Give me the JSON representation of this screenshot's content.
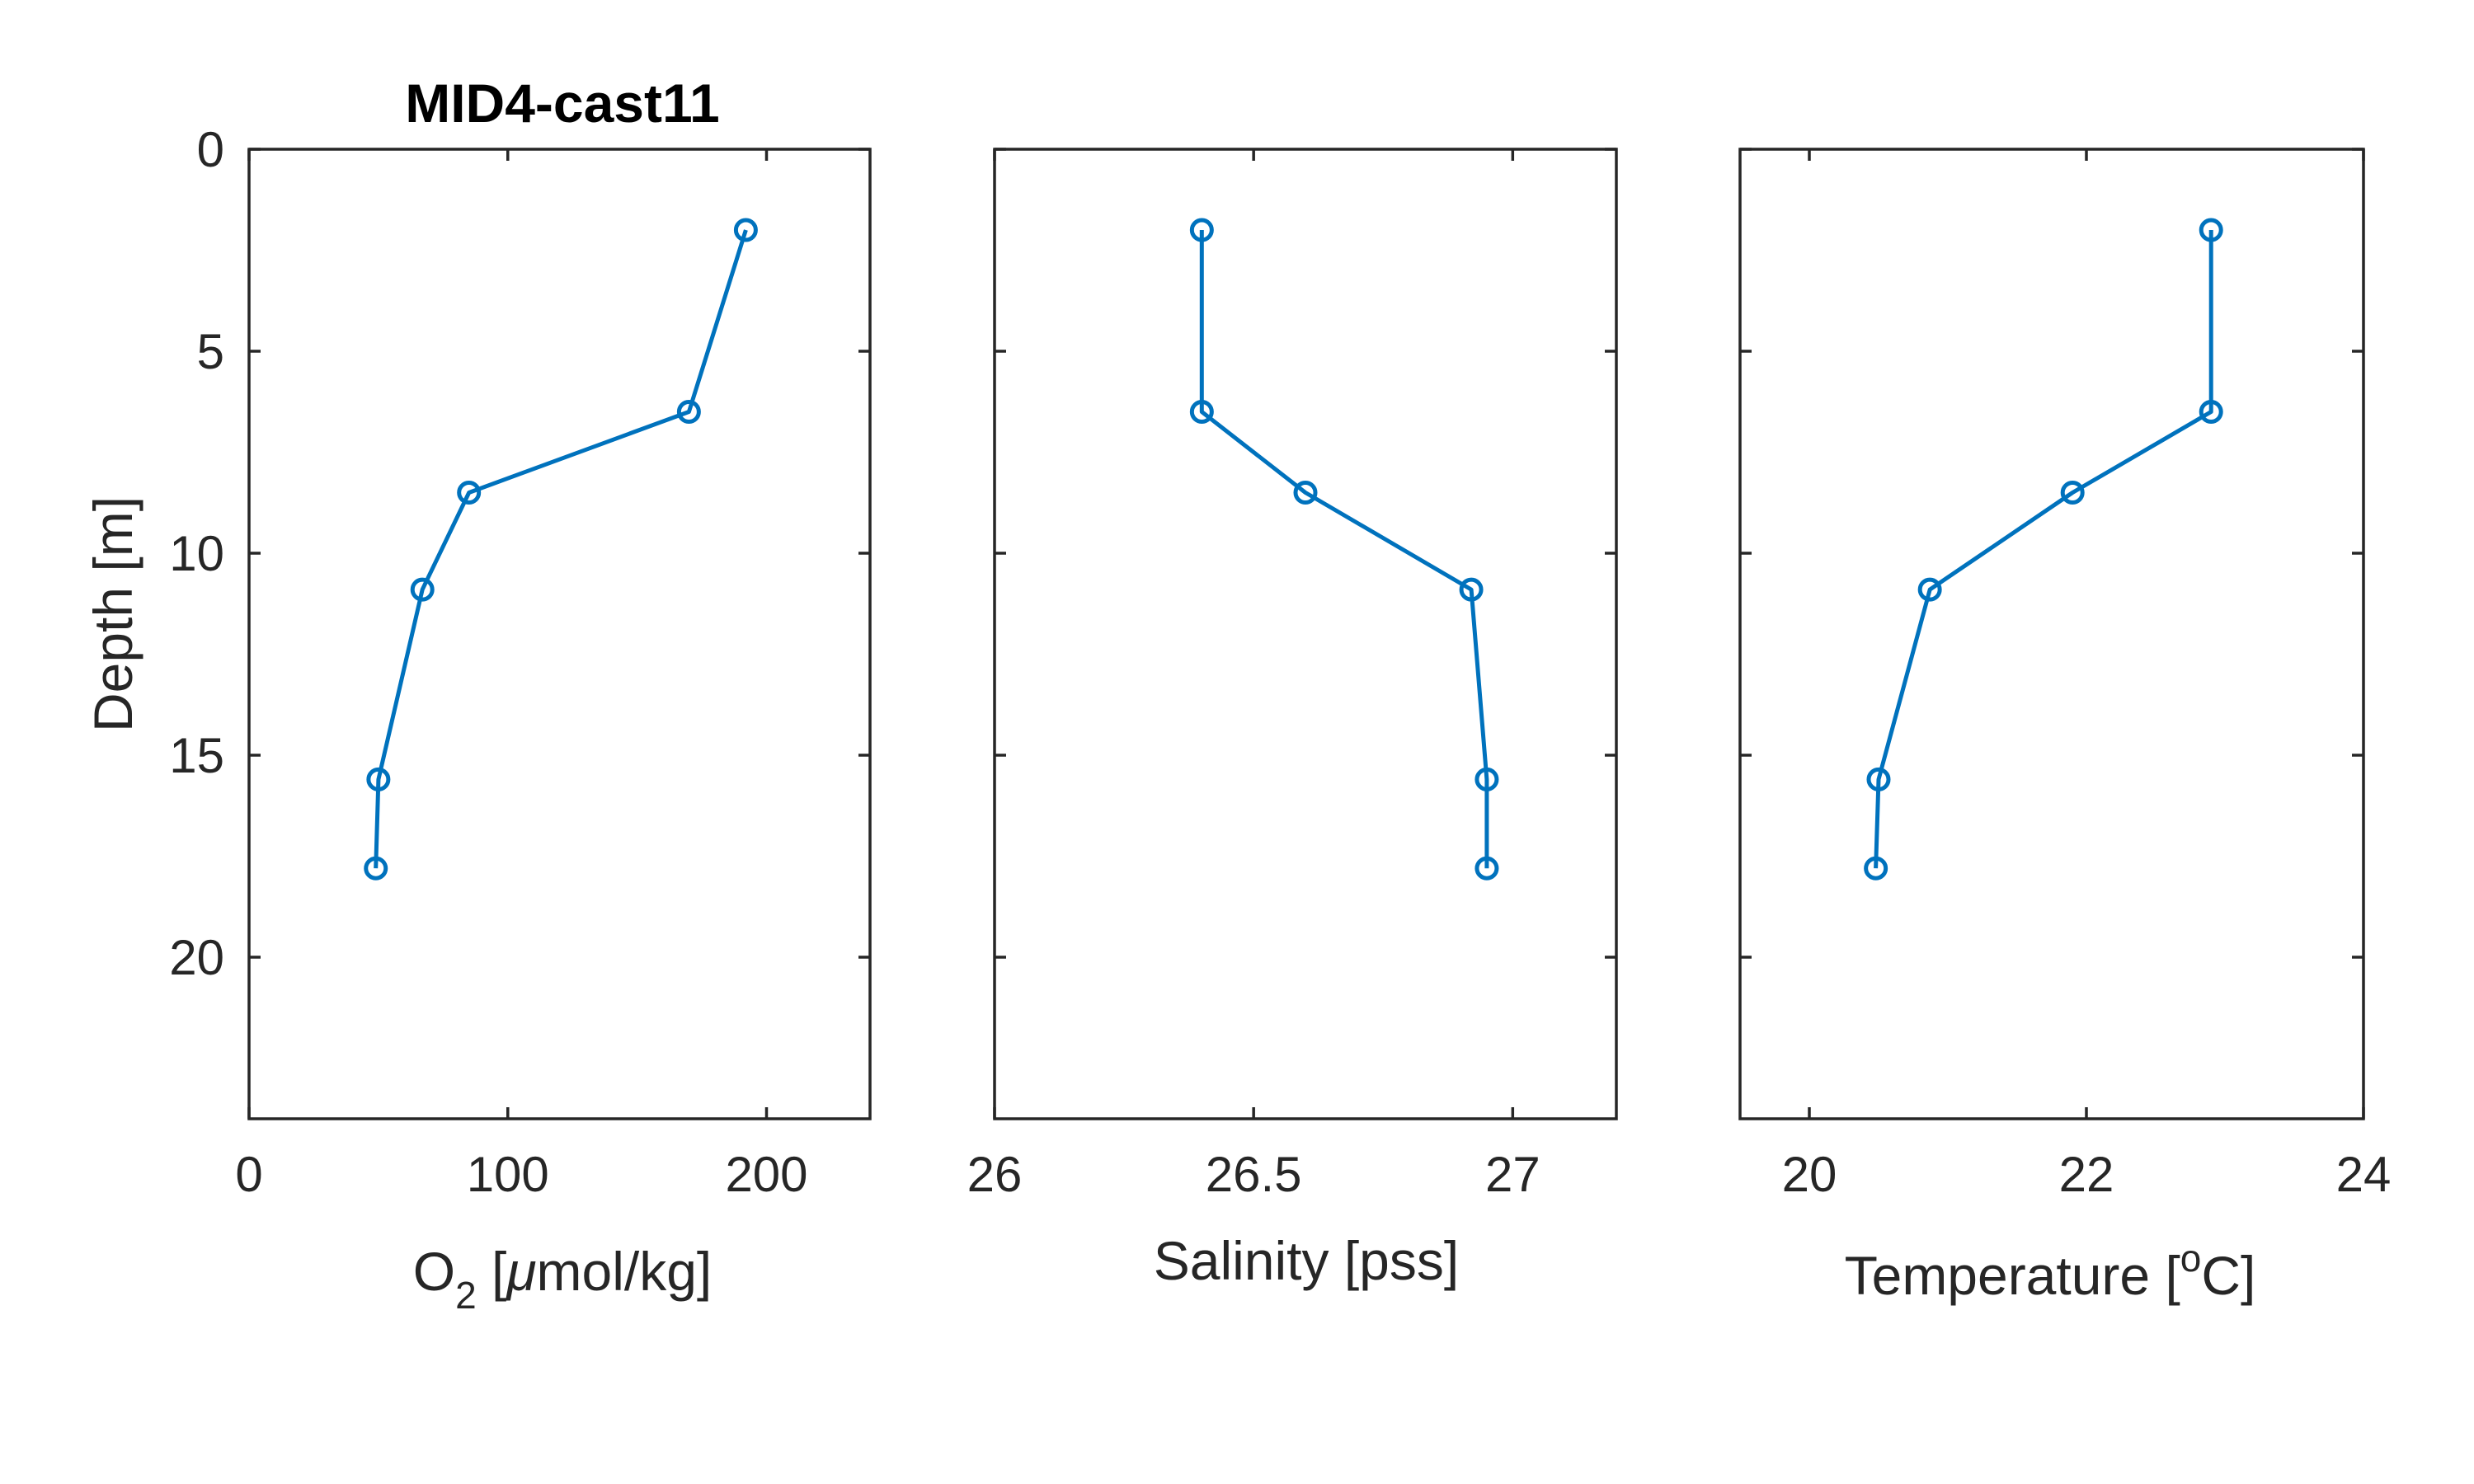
{
  "chart_data": [
    {
      "type": "line",
      "title": "MID4-cast11",
      "xlabel": {
        "main": "O",
        "sub": "2",
        "greek": "μ",
        "rest": "mol/kg]",
        "open": " ["
      },
      "ylabel": "Depth [m]",
      "xlim": [
        0,
        240
      ],
      "ylim": [
        0,
        24
      ],
      "y_reversed": true,
      "xticks": [
        0,
        100,
        200
      ],
      "xtick_labels": [
        "0",
        "100",
        "200"
      ],
      "yticks": [
        0,
        5,
        10,
        15,
        20
      ],
      "ytick_labels": [
        "0",
        "5",
        "10",
        "15",
        "20"
      ],
      "x": [
        192,
        170,
        85,
        67,
        50,
        49
      ],
      "y": [
        2,
        6.5,
        8.5,
        10.9,
        15.6,
        17.8
      ]
    },
    {
      "type": "line",
      "title": "",
      "xlabel": "Salinity [pss]",
      "ylabel": "",
      "xlim": [
        26,
        27.2
      ],
      "ylim": [
        0,
        24
      ],
      "y_reversed": true,
      "xticks": [
        26,
        26.5,
        27
      ],
      "xtick_labels": [
        "26",
        "26.5",
        "27"
      ],
      "yticks": [
        0,
        5,
        10,
        15,
        20
      ],
      "ytick_labels": [],
      "x": [
        26.4,
        26.4,
        26.6,
        26.92,
        26.95,
        26.95
      ],
      "y": [
        2,
        6.5,
        8.5,
        10.9,
        15.6,
        17.8
      ]
    },
    {
      "type": "line",
      "title": "",
      "xlabel": {
        "main": "Temperature [",
        "sup": "o",
        "rest": "C]"
      },
      "ylabel": "",
      "xlim": [
        19.5,
        24
      ],
      "ylim": [
        0,
        24
      ],
      "y_reversed": true,
      "xticks": [
        20,
        22,
        24
      ],
      "xtick_labels": [
        "20",
        "22",
        "24"
      ],
      "yticks": [
        0,
        5,
        10,
        15,
        20
      ],
      "ytick_labels": [],
      "x": [
        22.9,
        22.9,
        21.9,
        20.87,
        20.5,
        20.48
      ],
      "y": [
        2,
        6.5,
        8.5,
        10.9,
        15.6,
        17.8
      ]
    }
  ],
  "colors": {
    "series": "#0072BD",
    "axes": "#262626",
    "background": "#ffffff"
  }
}
